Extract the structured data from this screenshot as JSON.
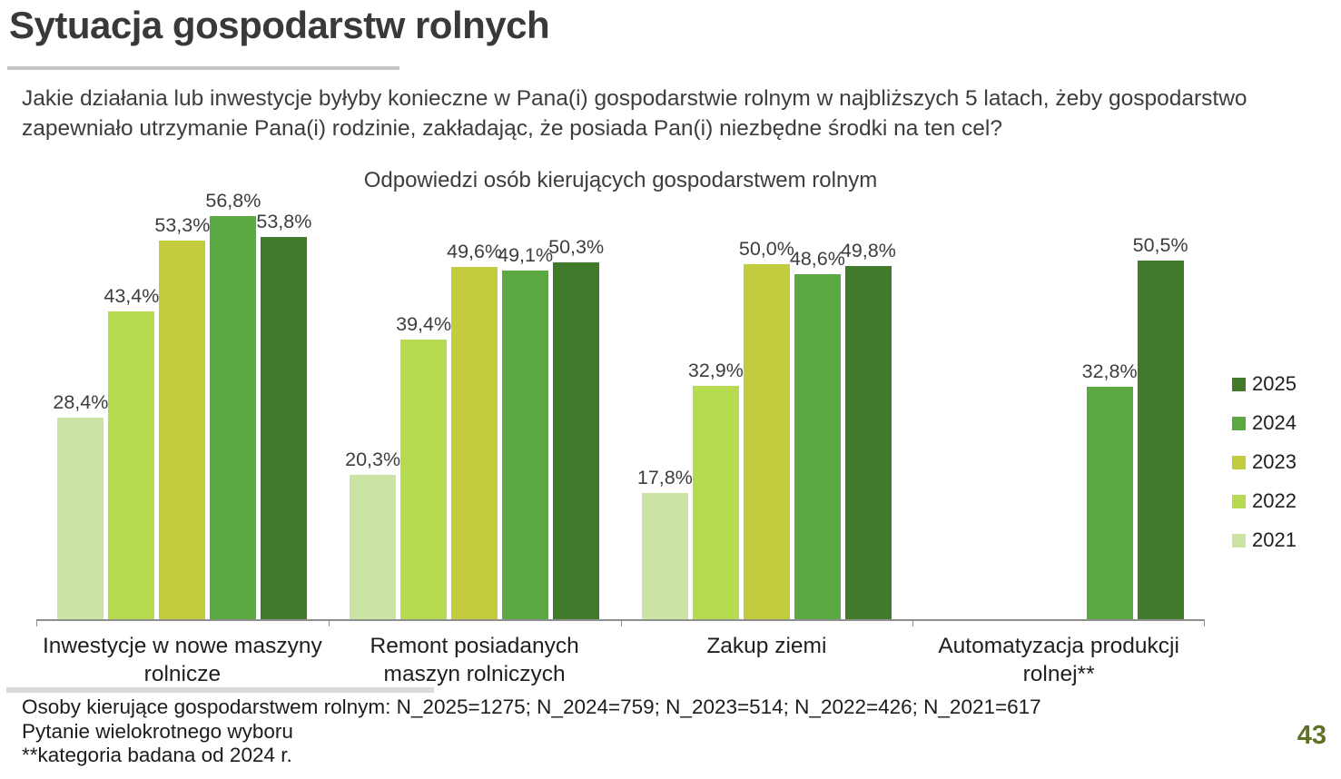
{
  "slide": {
    "title": "Sytuacja gospodarstw rolnych",
    "question": "Jakie działania lub inwestycje byłyby konieczne w Pana(i) gospodarstwie rolnym w najbliższych 5 latach, żeby gospodarstwo zapewniało utrzymanie Pana(i) rodzinie, zakładając, że posiada Pan(i) niezbędne środki na ten cel?",
    "footer_lines": [
      "Osoby kierujące gospodarstwem rolnym: N_2025=1275; N_2024=759; N_2023=514; N_2022=426; N_2021=617",
      "Pytanie wielokrotnego wyboru",
      "**kategoria badana od 2024 r."
    ],
    "page_number": "43",
    "accent_color": "#5f7224"
  },
  "chart_data": {
    "type": "bar",
    "title": "Odpowiedzi osób kierujących gospodarstwem rolnym",
    "categories": [
      "Inwestycje w nowe maszyny rolnicze",
      "Remont posiadanych maszyn rolniczych",
      "Zakup ziemi",
      "Automatyzacja produkcji rolnej**"
    ],
    "series": [
      {
        "name": "2021",
        "color": "#cbe3a3",
        "values": [
          28.4,
          20.3,
          17.8,
          null
        ],
        "labels": [
          "28,4%",
          "20,3%",
          "17,8%",
          null
        ]
      },
      {
        "name": "2022",
        "color": "#b6da50",
        "values": [
          43.4,
          39.4,
          32.9,
          null
        ],
        "labels": [
          "43,4%",
          "39,4%",
          "32,9%",
          null
        ]
      },
      {
        "name": "2023",
        "color": "#c3cc3d",
        "values": [
          53.3,
          49.6,
          50.0,
          null
        ],
        "labels": [
          "53,3%",
          "49,6%",
          "50,0%",
          null
        ]
      },
      {
        "name": "2024",
        "color": "#5aa943",
        "values": [
          56.8,
          49.1,
          48.6,
          32.8
        ],
        "labels": [
          "56,8%",
          "49,1%",
          "48,6%",
          "32,8%"
        ]
      },
      {
        "name": "2025",
        "color": "#407a2a",
        "values": [
          53.8,
          50.3,
          49.8,
          50.5
        ],
        "labels": [
          "53,8%",
          "50,3%",
          "49,8%",
          "50,5%"
        ]
      }
    ],
    "legend_order": [
      "2025",
      "2024",
      "2023",
      "2022",
      "2021"
    ],
    "legend_position": "right",
    "xlabel": "",
    "ylabel": "",
    "ylim": [
      0,
      60
    ],
    "grid": false,
    "value_format": "percent-comma-decimal"
  }
}
